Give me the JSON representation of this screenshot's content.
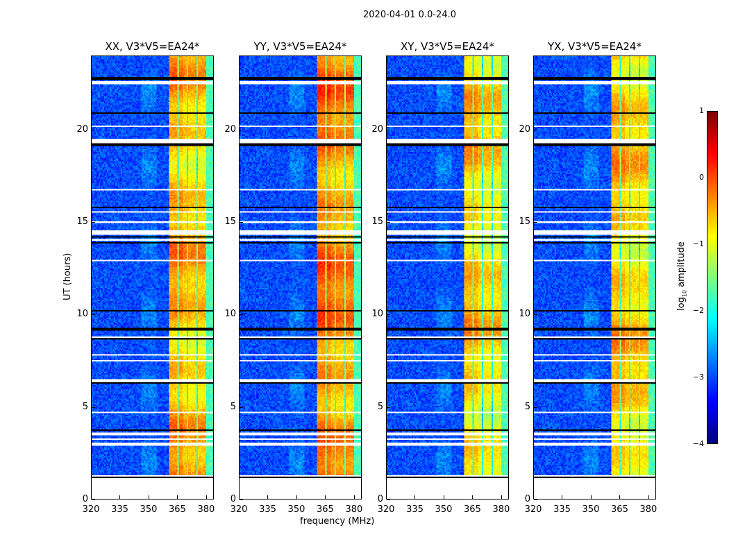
{
  "chart_data": {
    "type": "heatmap",
    "title": "2020-04-01 0.0-24.0",
    "xlabel": "frequency (MHz)",
    "ylabel": "UT (hours)",
    "xlim": [
      320,
      384
    ],
    "ylim": [
      0,
      24
    ],
    "xticks": [
      "320",
      "335",
      "350",
      "365",
      "380"
    ],
    "xtick_values": [
      320,
      335,
      350,
      365,
      380
    ],
    "yticks": [
      "0",
      "5",
      "10",
      "15",
      "20"
    ],
    "ytick_values": [
      0,
      5,
      10,
      15,
      20
    ],
    "data_start_hour": 1.25,
    "high_band_mhz": [
      360.5,
      380
    ],
    "panels": [
      {
        "title": "XX, V3*V5=EA24*",
        "band_gain": 0.0
      },
      {
        "title": "YY, V3*V5=EA24*",
        "band_gain": 0.25
      },
      {
        "title": "XY, V3*V5=EA24*",
        "band_gain": -0.15
      },
      {
        "title": "YX, V3*V5=EA24*",
        "band_gain": -0.1
      }
    ],
    "flagged_hours": [
      [
        2.05,
        2.12
      ],
      [
        2.9,
        3.0
      ],
      [
        3.2,
        3.25
      ],
      [
        3.45,
        3.6
      ],
      [
        4.65,
        4.72
      ],
      [
        6.3,
        6.45
      ],
      [
        7.4,
        7.48
      ],
      [
        7.75,
        7.8
      ],
      [
        8.7,
        8.8
      ],
      [
        12.9,
        12.95
      ],
      [
        14.0,
        14.1
      ],
      [
        14.3,
        14.55
      ],
      [
        15.0,
        15.05
      ],
      [
        15.5,
        15.6
      ],
      [
        16.7,
        16.8
      ],
      [
        17.1,
        17.15
      ],
      [
        19.3,
        19.5
      ],
      [
        19.9,
        19.95
      ],
      [
        20.15,
        20.25
      ],
      [
        21.5,
        21.55
      ],
      [
        22.3,
        22.35
      ],
      [
        22.5,
        22.6
      ]
    ],
    "black_line_hours": [
      3.7,
      6.25,
      8.65,
      9.2,
      10.2,
      13.9,
      14.2,
      15.8,
      19.2,
      19.4,
      20.9,
      22.8
    ],
    "colorbar": {
      "label": "log10 amplitude",
      "label_main": "log",
      "label_sub": "10",
      "label_rest": " amplitude",
      "range": [
        -4,
        1
      ],
      "ticks": [
        "1",
        "0",
        "−1",
        "−2",
        "−3",
        "−4"
      ],
      "tick_values": [
        1,
        0,
        -1,
        -2,
        -3,
        -4
      ],
      "colormap": "jet"
    }
  }
}
